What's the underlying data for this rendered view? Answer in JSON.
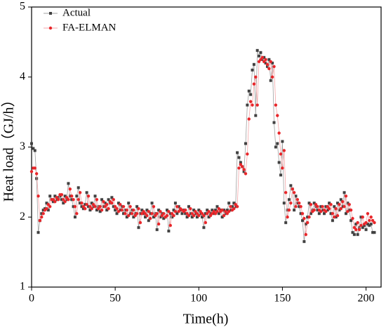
{
  "chart_data": {
    "type": "line",
    "xlabel": "Time(h)",
    "ylabel": "Heat load（GJ/h）",
    "x": [
      0,
      1,
      2,
      3,
      4,
      5,
      6,
      7,
      8,
      9,
      10,
      11,
      12,
      13,
      14,
      15,
      16,
      17,
      18,
      19,
      20,
      21,
      22,
      23,
      24,
      25,
      26,
      27,
      28,
      29,
      30,
      31,
      32,
      33,
      34,
      35,
      36,
      37,
      38,
      39,
      40,
      41,
      42,
      43,
      44,
      45,
      46,
      47,
      48,
      49,
      50,
      51,
      52,
      53,
      54,
      55,
      56,
      57,
      58,
      59,
      60,
      61,
      62,
      63,
      64,
      65,
      66,
      67,
      68,
      69,
      70,
      71,
      72,
      73,
      74,
      75,
      76,
      77,
      78,
      79,
      80,
      81,
      82,
      83,
      84,
      85,
      86,
      87,
      88,
      89,
      90,
      91,
      92,
      93,
      94,
      95,
      96,
      97,
      98,
      99,
      100,
      101,
      102,
      103,
      104,
      105,
      106,
      107,
      108,
      109,
      110,
      111,
      112,
      113,
      114,
      115,
      116,
      117,
      118,
      119,
      120,
      121,
      122,
      123,
      124,
      125,
      126,
      127,
      128,
      129,
      130,
      131,
      132,
      133,
      134,
      135,
      136,
      137,
      138,
      139,
      140,
      141,
      142,
      143,
      144,
      145,
      146,
      147,
      148,
      149,
      150,
      151,
      152,
      153,
      154,
      155,
      156,
      157,
      158,
      159,
      160,
      161,
      162,
      163,
      164,
      165,
      166,
      167,
      168,
      169,
      170,
      171,
      172,
      173,
      174,
      175,
      176,
      177,
      178,
      179,
      180,
      181,
      182,
      183,
      184,
      185,
      186,
      187,
      188,
      189,
      190,
      191,
      192,
      193,
      194,
      195,
      196,
      197,
      198,
      199,
      200,
      201,
      202,
      203,
      204,
      205
    ],
    "series": [
      {
        "name": "Actual",
        "color": "#404040",
        "line_color": "#a0a0a0",
        "marker": "square",
        "values": [
          3.05,
          2.98,
          2.95,
          2.55,
          1.78,
          1.95,
          2.05,
          2.1,
          2.12,
          2.2,
          2.1,
          2.3,
          2.25,
          2.22,
          2.3,
          2.25,
          2.28,
          2.3,
          2.25,
          2.2,
          2.3,
          2.25,
          2.48,
          2.3,
          2.25,
          2.15,
          2.0,
          2.3,
          2.42,
          2.2,
          2.15,
          2.12,
          2.18,
          2.35,
          2.15,
          2.1,
          2.2,
          2.15,
          2.3,
          2.1,
          2.15,
          2.08,
          2.25,
          2.15,
          2.2,
          2.1,
          2.25,
          2.2,
          2.28,
          2.15,
          2.1,
          2.05,
          2.2,
          2.1,
          2.15,
          2.05,
          2.1,
          2.0,
          2.2,
          2.05,
          2.1,
          2.0,
          2.05,
          2.15,
          1.85,
          2.05,
          2.1,
          2.05,
          2.0,
          2.1,
          1.95,
          2.05,
          2.2,
          2.0,
          2.05,
          1.82,
          2.1,
          2.0,
          2.05,
          1.98,
          2.0,
          2.1,
          1.8,
          2.05,
          2.0,
          2.1,
          2.2,
          2.05,
          2.15,
          2.1,
          2.05,
          2.1,
          2.05,
          2.0,
          2.15,
          2.05,
          2.0,
          2.1,
          2.05,
          2.0,
          2.1,
          2.05,
          2.0,
          1.85,
          2.05,
          2.1,
          2.0,
          2.05,
          2.1,
          2.05,
          2.1,
          2.15,
          2.05,
          2.1,
          2.0,
          2.1,
          2.05,
          2.1,
          2.2,
          2.1,
          2.15,
          2.2,
          2.15,
          2.92,
          2.85,
          2.78,
          2.72,
          2.65,
          3.05,
          3.6,
          3.8,
          3.75,
          4.1,
          4.18,
          3.45,
          4.38,
          4.3,
          4.35,
          4.25,
          4.28,
          4.2,
          4.15,
          4.25,
          3.95,
          4.2,
          3.35,
          3.0,
          3.05,
          2.78,
          2.6,
          3.08,
          2.2,
          1.92,
          2.1,
          2.25,
          2.45,
          2.4,
          2.1,
          2.3,
          2.2,
          2.15,
          2.05,
          1.95,
          1.65,
          1.9,
          2.0,
          2.2,
          2.05,
          2.1,
          2.2,
          2.15,
          2.1,
          2.05,
          2.15,
          2.1,
          2.05,
          2.15,
          2.1,
          2.2,
          2.05,
          1.95,
          2.15,
          2.0,
          2.2,
          2.1,
          2.25,
          2.15,
          2.35,
          2.05,
          2.2,
          2.1,
          1.95,
          1.78,
          1.75,
          1.9,
          1.75,
          1.85,
          2.0,
          1.85,
          1.88,
          1.82,
          1.9,
          1.88,
          1.9,
          1.78,
          1.78
        ]
      },
      {
        "name": "FA-ELMAN",
        "color": "#e8262a",
        "line_color": "#f4a6a8",
        "marker": "circle",
        "values": [
          2.65,
          2.7,
          2.7,
          2.62,
          2.3,
          1.95,
          2.0,
          2.05,
          2.1,
          2.12,
          2.18,
          2.15,
          2.25,
          2.25,
          2.22,
          2.28,
          2.25,
          2.32,
          2.32,
          2.25,
          2.22,
          2.28,
          2.25,
          2.4,
          2.3,
          2.25,
          2.15,
          2.05,
          2.25,
          2.35,
          2.2,
          2.15,
          2.12,
          2.18,
          2.3,
          2.15,
          2.12,
          2.18,
          2.15,
          2.25,
          2.12,
          2.15,
          2.1,
          2.22,
          2.15,
          2.18,
          2.12,
          2.22,
          2.2,
          2.25,
          2.15,
          2.12,
          2.08,
          2.18,
          2.1,
          2.15,
          2.05,
          2.1,
          2.02,
          2.15,
          2.05,
          2.1,
          2.02,
          2.05,
          2.12,
          1.92,
          2.05,
          2.08,
          2.05,
          2.02,
          2.08,
          1.98,
          2.05,
          2.15,
          2.02,
          2.05,
          1.9,
          2.08,
          2.02,
          2.05,
          2.0,
          2.02,
          2.08,
          1.88,
          2.05,
          2.02,
          2.08,
          2.15,
          2.08,
          2.12,
          2.1,
          2.08,
          2.1,
          2.05,
          2.02,
          2.12,
          2.05,
          2.02,
          2.08,
          2.05,
          2.02,
          2.08,
          2.05,
          2.02,
          1.92,
          2.05,
          2.08,
          2.02,
          2.05,
          2.08,
          2.05,
          2.08,
          2.12,
          2.08,
          2.1,
          2.02,
          2.08,
          2.05,
          2.08,
          2.15,
          2.1,
          2.12,
          2.18,
          2.15,
          2.7,
          2.75,
          2.72,
          2.68,
          2.62,
          2.9,
          3.4,
          3.65,
          3.6,
          3.9,
          4.0,
          3.6,
          4.22,
          4.25,
          4.28,
          4.22,
          4.25,
          4.18,
          4.12,
          4.22,
          4.0,
          4.15,
          3.6,
          3.45,
          3.2,
          2.9,
          2.7,
          2.95,
          2.35,
          2.0,
          2.1,
          2.2,
          2.4,
          2.35,
          2.15,
          2.25,
          2.2,
          2.15,
          2.05,
          1.98,
          1.75,
          1.92,
          2.0,
          2.18,
          2.08,
          2.1,
          2.18,
          2.15,
          2.1,
          2.08,
          2.15,
          2.1,
          2.08,
          2.15,
          2.12,
          2.18,
          2.05,
          2.0,
          2.12,
          2.02,
          2.18,
          2.12,
          2.22,
          2.15,
          2.3,
          2.08,
          2.18,
          2.1,
          1.98,
          1.85,
          1.82,
          1.92,
          1.82,
          1.88,
          2.0,
          1.9,
          1.92,
          2.05,
          1.95,
          2.0,
          1.95,
          1.92
        ]
      }
    ],
    "xlim": [
      0,
      209
    ],
    "ylim": [
      1,
      5
    ],
    "xticks": [
      0,
      50,
      100,
      150,
      200
    ],
    "yticks": [
      1,
      2,
      3,
      4,
      5
    ],
    "legend": "upper left"
  }
}
